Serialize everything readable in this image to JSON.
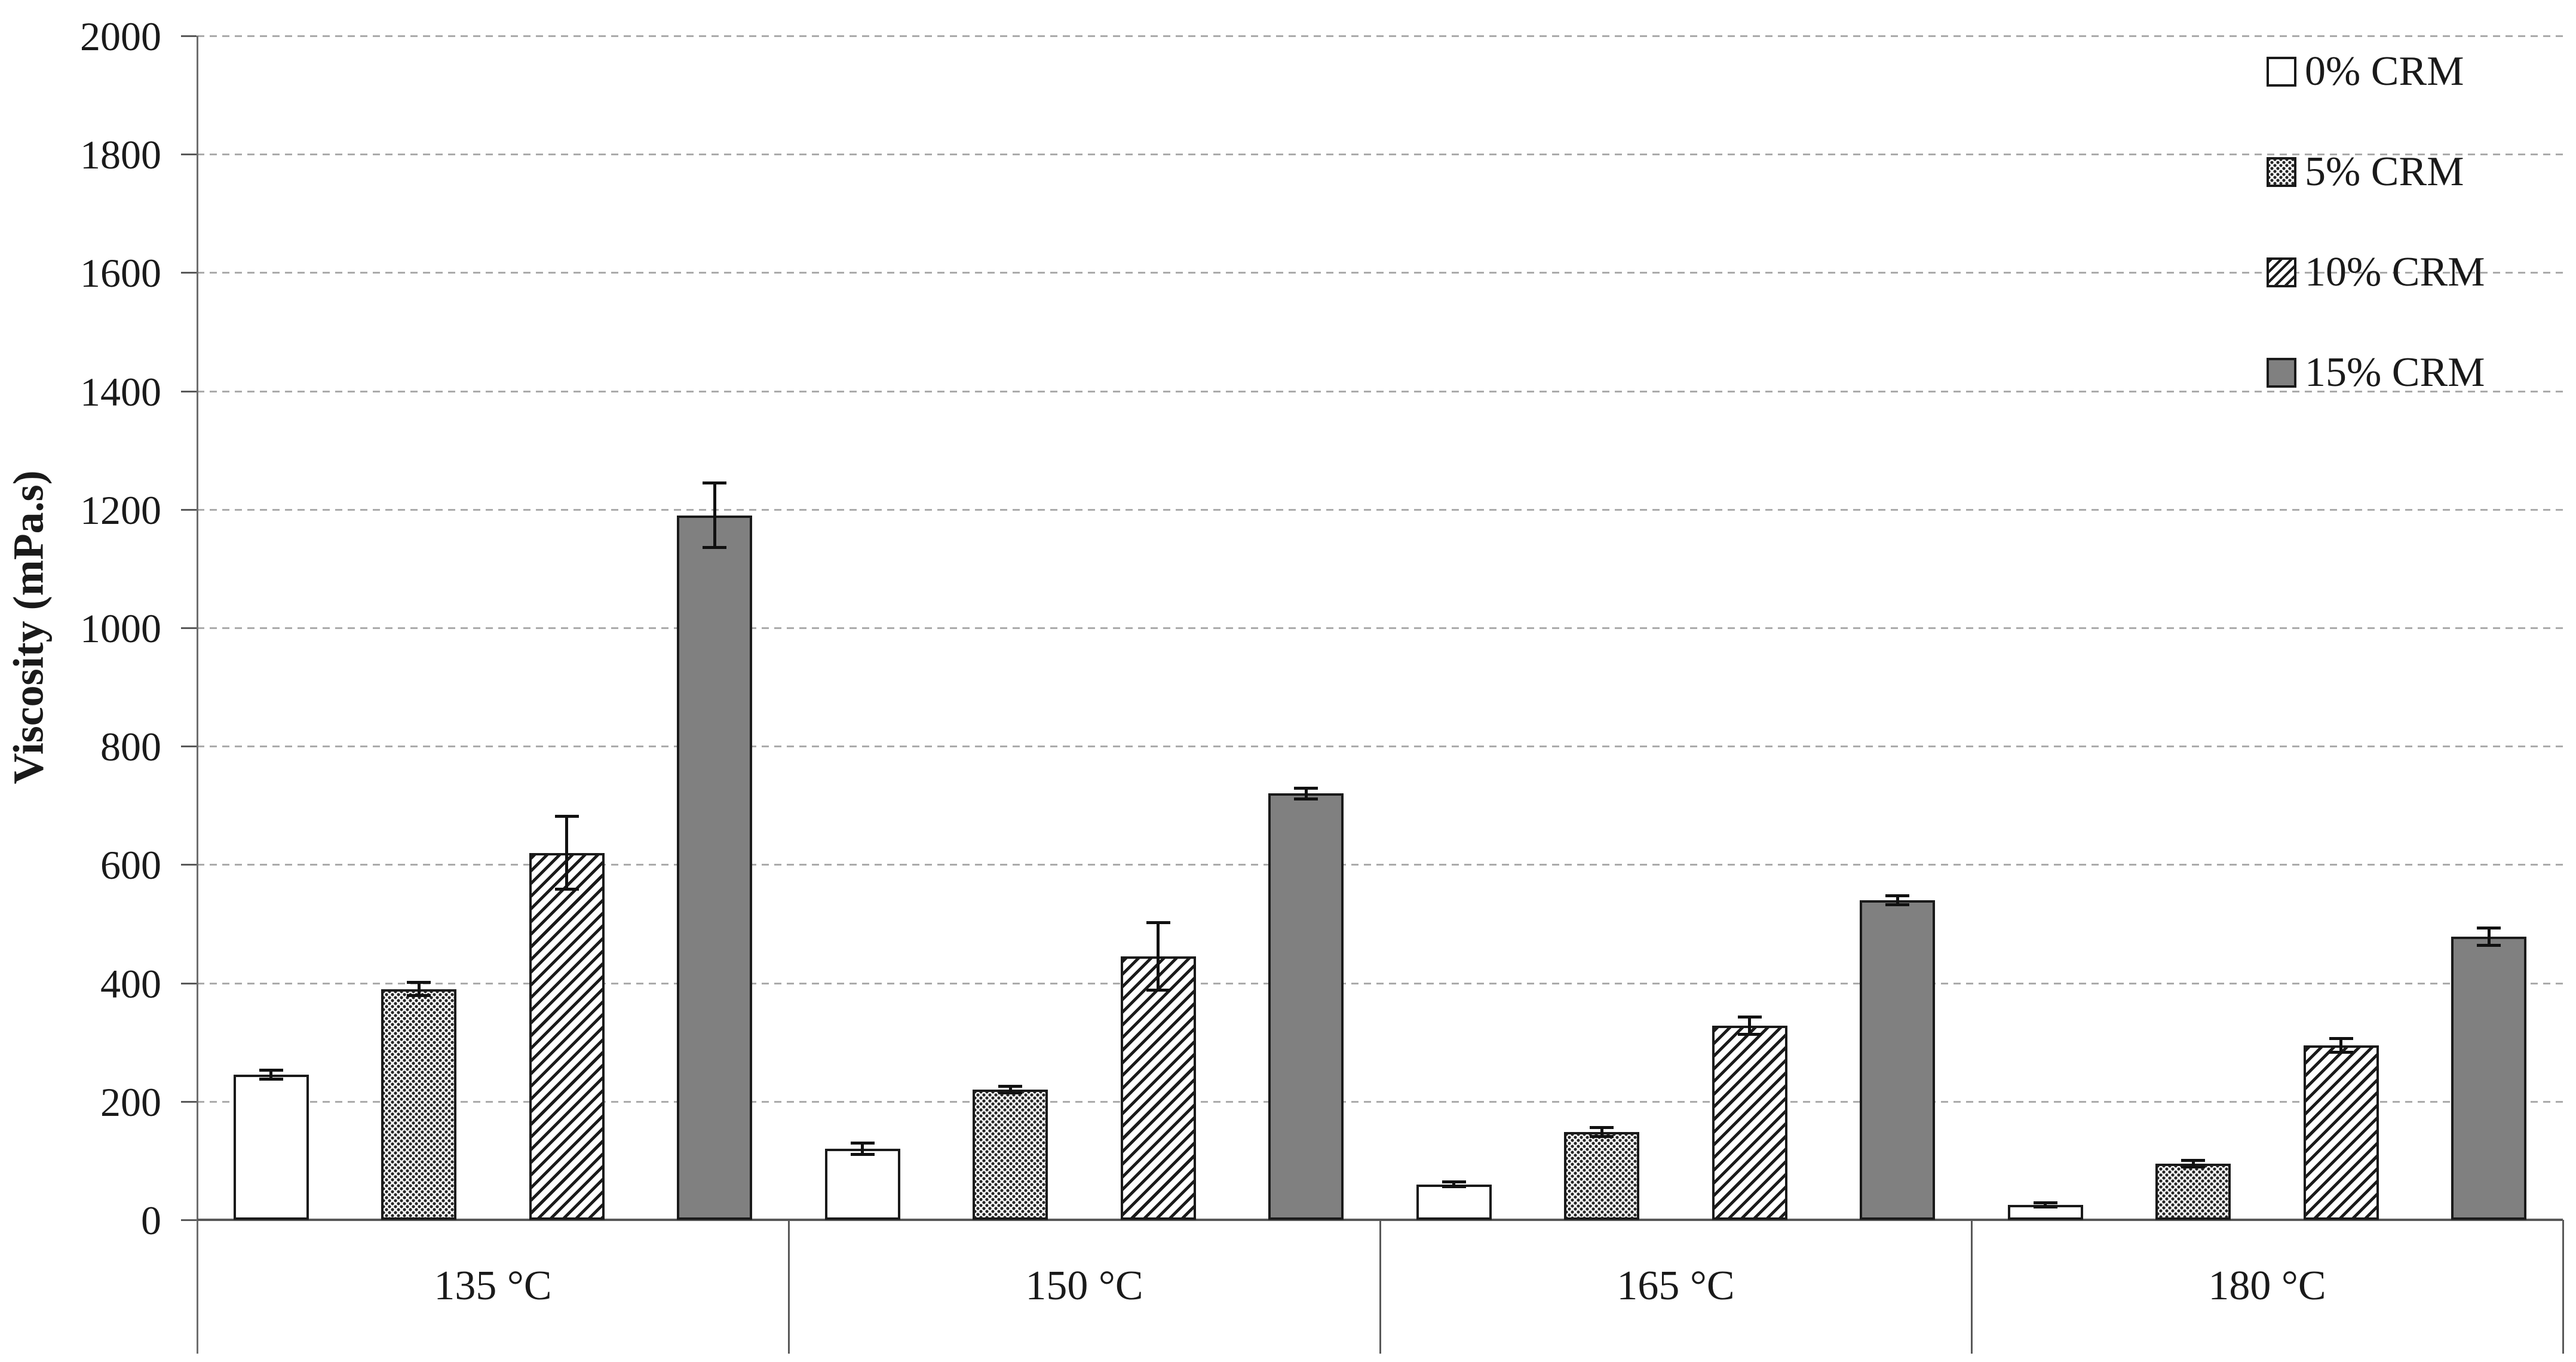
{
  "chart_data": {
    "type": "bar",
    "title": "",
    "ylabel": "Viscosity (mPa.s)",
    "xlabel": "",
    "ylim": [
      0,
      2000
    ],
    "ytick_step": 200,
    "ytick_labels": [
      "2000",
      "1800",
      "1600",
      "1400",
      "1200",
      "1000",
      "800",
      "600",
      "400",
      "200",
      "0"
    ],
    "categories": [
      "135 °C",
      "150 °C",
      "165 °C",
      "180 °C"
    ],
    "series": [
      {
        "name": "0% CRM",
        "pattern": "white",
        "values": [
          245,
          120,
          60,
          25
        ],
        "errors": [
          8,
          10,
          5,
          4
        ]
      },
      {
        "name": "5% CRM",
        "pattern": "dots",
        "values": [
          390,
          220,
          148,
          95
        ],
        "errors": [
          12,
          6,
          8,
          6
        ]
      },
      {
        "name": "10% CRM",
        "pattern": "diagonal-hatch",
        "values": [
          620,
          445,
          328,
          295
        ],
        "errors": [
          62,
          58,
          15,
          12
        ]
      },
      {
        "name": "15% CRM",
        "pattern": "solid-gray",
        "values": [
          1190,
          720,
          540,
          478
        ],
        "errors": [
          55,
          10,
          8,
          15
        ]
      }
    ],
    "legend_position": "top-right",
    "grid": "horizontal-dashed",
    "error_bars": true
  },
  "colors": {
    "bar_border": "#1a1a1a",
    "solid_gray_fill": "#808080",
    "gridline": "#ababab",
    "axis": "#595959",
    "text": "#1a1a1a",
    "background": "#ffffff"
  }
}
